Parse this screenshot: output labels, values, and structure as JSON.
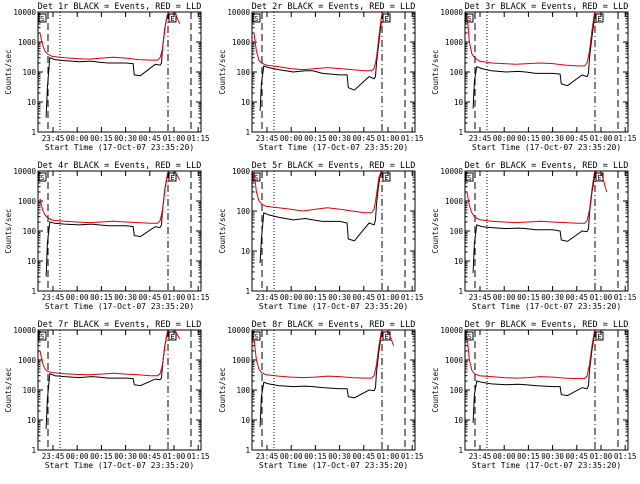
{
  "chart_data": [
    {
      "type": "line",
      "title": "Det 1r BLACK = Events, RED = LLD",
      "xlabel": "Start Time (17-Oct-07 23:35:20)",
      "ylabel": "Counts/sec",
      "yscale": "log",
      "ylim": [
        1,
        10000
      ],
      "x_ticks": [
        "23:45",
        "00:00",
        "00:15",
        "00:30",
        "00:45",
        "01:00",
        "01:15"
      ],
      "y_ticks": [
        "1",
        "10",
        "100",
        "1000",
        "10000"
      ],
      "markers": [
        "S",
        "E"
      ],
      "series": [
        {
          "color": "#000000",
          "x": [
            1,
            2,
            2.5,
            3,
            4,
            6,
            10,
            16,
            21,
            24,
            28,
            35,
            38,
            38.5,
            41,
            47,
            49,
            49.6,
            50,
            51,
            52,
            53
          ],
          "y": [
            null,
            null,
            3,
            30,
            300,
            260,
            240,
            220,
            230,
            210,
            200,
            200,
            190,
            80,
            75,
            180,
            170,
            200,
            600,
            3000,
            8000,
            12000
          ]
        },
        {
          "color": "#e00000",
          "x": [
            0,
            1,
            2,
            3,
            5,
            10,
            15,
            20,
            25,
            30,
            35,
            40,
            45,
            48,
            49,
            50,
            51,
            52,
            53,
            55,
            57
          ],
          "y": [
            2000,
            800,
            500,
            400,
            330,
            300,
            280,
            270,
            290,
            310,
            290,
            260,
            250,
            250,
            300,
            600,
            3000,
            8000,
            15000,
            10000,
            4000
          ]
        }
      ]
    },
    {
      "type": "line",
      "title": "Det 2r BLACK = Events, RED = LLD",
      "xlabel": "Start Time (17-Oct-07 23:35:20)",
      "ylabel": "Counts/sec",
      "yscale": "log",
      "ylim": [
        1,
        10000
      ],
      "x_ticks": [
        "23:45",
        "00:00",
        "00:15",
        "00:30",
        "00:45",
        "01:00",
        "01:15"
      ],
      "y_ticks": [
        "1",
        "10",
        "100",
        "1000",
        "10000"
      ],
      "markers": [
        "S",
        "E"
      ],
      "series": [
        {
          "color": "#000000",
          "x": [
            1,
            2,
            2.5,
            3,
            4,
            6,
            10,
            16,
            21,
            24,
            28,
            35,
            38,
            38.5,
            41,
            47,
            49,
            49.6,
            50,
            51,
            52
          ],
          "y": [
            null,
            null,
            5,
            40,
            160,
            140,
            120,
            100,
            110,
            110,
            90,
            80,
            80,
            30,
            25,
            70,
            60,
            70,
            200,
            1000,
            5000
          ]
        },
        {
          "color": "#e00000",
          "x": [
            0,
            1,
            2,
            3,
            5,
            10,
            15,
            20,
            25,
            30,
            35,
            40,
            45,
            48,
            49,
            50,
            51,
            52,
            53
          ],
          "y": [
            2000,
            500,
            250,
            200,
            170,
            150,
            130,
            120,
            130,
            140,
            130,
            120,
            110,
            110,
            130,
            300,
            1500,
            7000,
            12000
          ]
        }
      ]
    },
    {
      "type": "line",
      "title": "Det 3r BLACK = Events, RED = LLD",
      "xlabel": "Start Time (17-Oct-07 23:35:20)",
      "ylabel": "Counts/sec",
      "yscale": "log",
      "ylim": [
        1,
        10000
      ],
      "x_ticks": [
        "23:45",
        "00:00",
        "00:15",
        "00:30",
        "00:45",
        "01:00",
        "01:15"
      ],
      "y_ticks": [
        "1",
        "10",
        "100",
        "1000",
        "10000"
      ],
      "markers": [
        "S",
        "E"
      ],
      "series": [
        {
          "color": "#000000",
          "x": [
            1,
            2,
            2.5,
            3,
            4,
            6,
            10,
            16,
            21,
            24,
            28,
            35,
            38,
            38.5,
            41,
            47,
            49,
            49.6,
            50,
            51,
            52
          ],
          "y": [
            null,
            null,
            6,
            50,
            150,
            130,
            110,
            100,
            105,
            100,
            90,
            90,
            85,
            40,
            35,
            80,
            70,
            90,
            300,
            1500,
            6000
          ]
        },
        {
          "color": "#e00000",
          "x": [
            0,
            1,
            2,
            3,
            5,
            10,
            15,
            20,
            25,
            30,
            35,
            40,
            45,
            48,
            49,
            50,
            51,
            52,
            53
          ],
          "y": [
            8000,
            1000,
            400,
            300,
            230,
            200,
            190,
            180,
            190,
            200,
            190,
            170,
            160,
            160,
            200,
            500,
            2500,
            9000,
            14000
          ]
        }
      ]
    },
    {
      "type": "line",
      "title": "Det 4r BLACK = Events, RED = LLD",
      "xlabel": "Start Time (17-Oct-07 23:35:20)",
      "ylabel": "Counts/sec",
      "yscale": "log",
      "ylim": [
        1,
        10000
      ],
      "x_ticks": [
        "23:45",
        "00:00",
        "00:15",
        "00:30",
        "00:45",
        "01:00",
        "01:15"
      ],
      "y_ticks": [
        "1",
        "10",
        "100",
        "1000",
        "10000"
      ],
      "markers": [
        "S",
        "E"
      ],
      "series": [
        {
          "color": "#000000",
          "x": [
            1,
            2,
            2.5,
            3,
            4,
            6,
            10,
            16,
            21,
            24,
            28,
            35,
            38,
            38.5,
            41,
            47,
            49,
            49.6,
            50,
            51,
            52,
            53
          ],
          "y": [
            null,
            null,
            3,
            40,
            200,
            180,
            170,
            160,
            170,
            160,
            150,
            150,
            140,
            70,
            65,
            140,
            130,
            160,
            500,
            2500,
            7000,
            12000
          ]
        },
        {
          "color": "#e00000",
          "x": [
            0,
            1,
            2,
            3,
            5,
            10,
            15,
            20,
            25,
            30,
            35,
            40,
            45,
            48,
            49,
            50,
            51,
            52,
            53,
            55,
            57
          ],
          "y": [
            1200,
            500,
            350,
            280,
            230,
            210,
            200,
            190,
            200,
            210,
            200,
            190,
            180,
            180,
            220,
            500,
            2500,
            8000,
            15000,
            10000,
            5000
          ]
        }
      ]
    },
    {
      "type": "line",
      "title": "Det 5r BLACK = Events, RED = LLD",
      "xlabel": "Start Time (17-Oct-07 23:35:20)",
      "ylabel": "Counts/sec",
      "yscale": "log",
      "ylim": [
        1,
        1000
      ],
      "x_ticks": [
        "23:45",
        "00:00",
        "00:15",
        "00:30",
        "00:45",
        "01:00",
        "01:15"
      ],
      "y_ticks": [
        "1",
        "10",
        "100",
        "1000"
      ],
      "markers": [
        "S",
        "E"
      ],
      "series": [
        {
          "color": "#000000",
          "x": [
            1,
            2,
            2.5,
            3,
            4,
            6,
            10,
            16,
            21,
            24,
            28,
            35,
            38,
            38.5,
            41,
            47,
            49,
            49.6,
            50,
            51,
            52
          ],
          "y": [
            null,
            null,
            5,
            20,
            90,
            80,
            70,
            60,
            65,
            60,
            55,
            55,
            50,
            20,
            18,
            50,
            45,
            60,
            150,
            500,
            1000
          ]
        },
        {
          "color": "#e00000",
          "x": [
            0,
            1,
            2,
            3,
            5,
            10,
            15,
            20,
            25,
            30,
            35,
            40,
            45,
            48,
            49,
            50,
            51,
            52
          ],
          "y": [
            1000,
            300,
            180,
            150,
            130,
            120,
            110,
            100,
            110,
            120,
            110,
            100,
            90,
            90,
            110,
            250,
            700,
            1000
          ]
        }
      ]
    },
    {
      "type": "line",
      "title": "Det 6r BLACK = Events, RED = LLD",
      "xlabel": "Start Time (17-Oct-07 23:35:20)",
      "ylabel": "Counts/sec",
      "yscale": "log",
      "ylim": [
        1,
        10000
      ],
      "x_ticks": [
        "23:45",
        "00:00",
        "00:15",
        "00:30",
        "00:45",
        "01:00",
        "01:15"
      ],
      "y_ticks": [
        "1",
        "10",
        "100",
        "1000",
        "10000"
      ],
      "markers": [
        "S",
        "E"
      ],
      "series": [
        {
          "color": "#000000",
          "x": [
            1,
            2,
            2.5,
            3,
            4,
            6,
            10,
            16,
            21,
            24,
            28,
            35,
            38,
            38.5,
            41,
            47,
            49,
            49.6,
            50,
            51,
            52,
            53
          ],
          "y": [
            null,
            null,
            4,
            40,
            160,
            140,
            130,
            120,
            125,
            120,
            110,
            110,
            100,
            50,
            45,
            100,
            95,
            120,
            400,
            2000,
            6000,
            12000
          ]
        },
        {
          "color": "#e00000",
          "x": [
            0,
            1,
            2,
            3,
            5,
            10,
            15,
            20,
            25,
            30,
            35,
            40,
            45,
            48,
            49,
            50,
            51,
            52,
            53,
            55,
            57
          ],
          "y": [
            2000,
            700,
            400,
            300,
            240,
            210,
            200,
            190,
            200,
            210,
            200,
            190,
            180,
            180,
            220,
            500,
            2500,
            9000,
            15000,
            8000,
            2000
          ]
        }
      ]
    },
    {
      "type": "line",
      "title": "Det 7r BLACK = Events, RED = LLD",
      "xlabel": "Start Time (17-Oct-07 23:35:20)",
      "ylabel": "Counts/sec",
      "yscale": "log",
      "ylim": [
        1,
        10000
      ],
      "x_ticks": [
        "23:45",
        "00:00",
        "00:15",
        "00:30",
        "00:45",
        "01:00",
        "01:15"
      ],
      "y_ticks": [
        "1",
        "10",
        "100",
        "1000",
        "10000"
      ],
      "markers": [
        "S",
        "E"
      ],
      "series": [
        {
          "color": "#000000",
          "x": [
            1,
            2,
            2.5,
            3,
            4,
            6,
            10,
            16,
            21,
            24,
            28,
            35,
            38,
            38.5,
            41,
            47,
            49,
            49.6,
            50,
            51,
            52,
            53
          ],
          "y": [
            null,
            null,
            5,
            50,
            350,
            300,
            280,
            260,
            280,
            270,
            250,
            250,
            240,
            150,
            140,
            230,
            220,
            250,
            700,
            3000,
            8000,
            12000
          ]
        },
        {
          "color": "#e00000",
          "x": [
            0,
            1,
            2,
            3,
            5,
            10,
            15,
            20,
            25,
            30,
            35,
            40,
            45,
            48,
            49,
            50,
            51,
            52,
            53,
            55,
            57
          ],
          "y": [
            2000,
            800,
            500,
            420,
            380,
            350,
            330,
            320,
            340,
            360,
            340,
            320,
            300,
            300,
            350,
            700,
            3000,
            9000,
            15000,
            10000,
            5000
          ]
        }
      ]
    },
    {
      "type": "line",
      "title": "Det 8r BLACK = Events, RED = LLD",
      "xlabel": "Start Time (17-Oct-07 23:35:20)",
      "ylabel": "Counts/sec",
      "yscale": "log",
      "ylim": [
        1,
        10000
      ],
      "x_ticks": [
        "23:45",
        "00:00",
        "00:15",
        "00:30",
        "00:45",
        "01:00",
        "01:15"
      ],
      "y_ticks": [
        "1",
        "10",
        "100",
        "1000",
        "10000"
      ],
      "markers": [
        "S",
        "E"
      ],
      "series": [
        {
          "color": "#000000",
          "x": [
            1,
            2,
            2.5,
            3,
            4,
            6,
            10,
            16,
            21,
            24,
            28,
            35,
            38,
            38.5,
            41,
            47,
            49,
            49.6,
            50,
            51,
            52
          ],
          "y": [
            null,
            null,
            6,
            60,
            180,
            160,
            140,
            130,
            135,
            130,
            120,
            110,
            110,
            60,
            55,
            100,
            95,
            120,
            400,
            2000,
            7000
          ]
        },
        {
          "color": "#e00000",
          "x": [
            0,
            1,
            2,
            3,
            5,
            10,
            15,
            20,
            25,
            30,
            35,
            40,
            45,
            48,
            49,
            50,
            51,
            52,
            53,
            55,
            57
          ],
          "y": [
            5000,
            1000,
            500,
            380,
            320,
            290,
            270,
            260,
            270,
            290,
            280,
            260,
            250,
            250,
            300,
            700,
            3000,
            9000,
            14000,
            8000,
            3000
          ]
        }
      ]
    },
    {
      "type": "line",
      "title": "Det 9r BLACK = Events, RED = LLD",
      "xlabel": "Start Time (17-Oct-07 23:35:20)",
      "ylabel": "Counts/sec",
      "yscale": "log",
      "ylim": [
        1,
        10000
      ],
      "x_ticks": [
        "23:45",
        "00:00",
        "00:15",
        "00:30",
        "00:45",
        "01:00",
        "01:15"
      ],
      "y_ticks": [
        "1",
        "10",
        "100",
        "1000",
        "10000"
      ],
      "markers": [
        "S",
        "E"
      ],
      "series": [
        {
          "color": "#000000",
          "x": [
            1,
            2,
            2.5,
            3,
            4,
            6,
            10,
            16,
            21,
            24,
            28,
            35,
            38,
            38.5,
            41,
            47,
            49,
            49.6,
            50,
            51,
            52
          ],
          "y": [
            null,
            null,
            8,
            70,
            200,
            180,
            160,
            150,
            155,
            150,
            140,
            130,
            130,
            70,
            65,
            120,
            110,
            140,
            450,
            2200,
            7000
          ]
        },
        {
          "color": "#e00000",
          "x": [
            0,
            1,
            2,
            3,
            5,
            10,
            15,
            20,
            25,
            30,
            35,
            40,
            45,
            48,
            49,
            50,
            51,
            52,
            53
          ],
          "y": [
            6000,
            1000,
            450,
            350,
            300,
            280,
            260,
            250,
            260,
            280,
            270,
            250,
            240,
            240,
            290,
            700,
            3000,
            9000,
            14000
          ]
        }
      ]
    }
  ]
}
